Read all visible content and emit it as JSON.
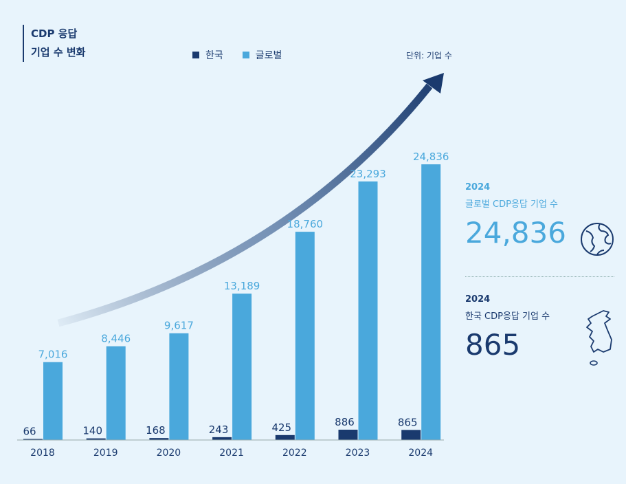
{
  "title_lines": [
    "CDP 응답",
    "기업 수 변화"
  ],
  "legend": [
    {
      "name": "한국",
      "color": "#1a3a6e"
    },
    {
      "name": "글로벌",
      "color": "#4aa8dc"
    }
  ],
  "unit": "단위: 기업 수",
  "chart_data": {
    "type": "bar",
    "categories": [
      "2018",
      "2019",
      "2020",
      "2021",
      "2022",
      "2023",
      "2024"
    ],
    "series": [
      {
        "name": "한국",
        "color": "#1a3a6e",
        "values": [
          66,
          140,
          168,
          243,
          425,
          886,
          865
        ],
        "labels": [
          "66",
          "140",
          "168",
          "243",
          "425",
          "886",
          "865"
        ]
      },
      {
        "name": "글로벌",
        "color": "#4aa8dc",
        "values": [
          7016,
          8446,
          9617,
          13189,
          18760,
          23293,
          24836
        ],
        "labels": [
          "7,016",
          "8,446",
          "9,617",
          "13,189",
          "18,760",
          "23,293",
          "24,836"
        ]
      }
    ],
    "trend_arrow": "increasing",
    "grid": false
  },
  "panel": {
    "global": {
      "year": "2024",
      "label": "글로벌 CDP응답 기업 수",
      "value": "24,836",
      "icon": "globe-icon",
      "color": "#4aa8dc"
    },
    "korea": {
      "year": "2024",
      "label": "한국 CDP응답 기업 수",
      "value": "865",
      "icon": "korea-map-icon",
      "color": "#1a3a6e"
    }
  }
}
